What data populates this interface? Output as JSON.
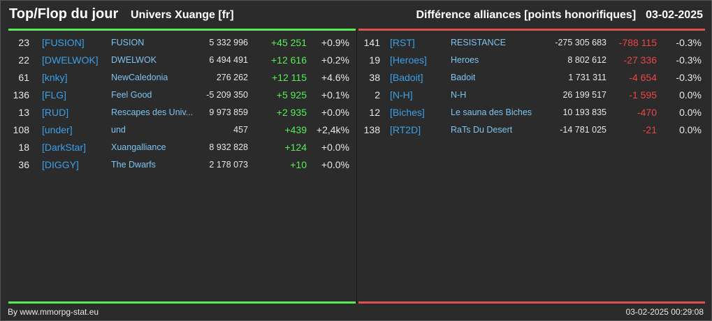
{
  "header": {
    "title": "Top/Flop du jour",
    "universe": "Univers Xuange [fr]",
    "metric": "Différence alliances [points honorifiques]",
    "date": "03-02-2025"
  },
  "colors": {
    "top_bar": "#55ee55",
    "flop_bar": "#e05050",
    "tag": "#3aa0e8",
    "up": "#55ee55",
    "down": "#ee4444"
  },
  "top": [
    {
      "rank": "23",
      "tag": "[FUSION]",
      "name": "FUSION",
      "points": "5 332 996",
      "diff": "+45 251",
      "pct": "+0.9%"
    },
    {
      "rank": "22",
      "tag": "[DWELWOK]",
      "name": "DWELWOK",
      "points": "6 494 491",
      "diff": "+12 616",
      "pct": "+0.2%"
    },
    {
      "rank": "61",
      "tag": "[knky]",
      "name": "NewCaledonia",
      "points": "276 262",
      "diff": "+12 115",
      "pct": "+4.6%"
    },
    {
      "rank": "136",
      "tag": "[FLG]",
      "name": "Feel Good",
      "points": "-5 209 350",
      "diff": "+5 925",
      "pct": "+0.1%"
    },
    {
      "rank": "13",
      "tag": "[RUD]",
      "name": "Rescapes des Univ...",
      "points": "9 973 859",
      "diff": "+2 935",
      "pct": "+0.0%"
    },
    {
      "rank": "108",
      "tag": "[under]",
      "name": "und",
      "points": "457",
      "diff": "+439",
      "pct": "+2,4k%"
    },
    {
      "rank": "18",
      "tag": "[DarkStar]",
      "name": "Xuangalliance",
      "points": "8 932 828",
      "diff": "+124",
      "pct": "+0.0%"
    },
    {
      "rank": "36",
      "tag": "[DIGGY]",
      "name": "The Dwarfs",
      "points": "2 178 073",
      "diff": "+10",
      "pct": "+0.0%"
    }
  ],
  "flop": [
    {
      "rank": "141",
      "tag": "[RST]",
      "name": "RESISTANCE",
      "points": "-275 305 683",
      "diff": "-788 115",
      "pct": "-0.3%"
    },
    {
      "rank": "19",
      "tag": "[Heroes]",
      "name": "Heroes",
      "points": "8 802 612",
      "diff": "-27 336",
      "pct": "-0.3%"
    },
    {
      "rank": "38",
      "tag": "[Badoit]",
      "name": "Badoit",
      "points": "1 731 311",
      "diff": "-4 654",
      "pct": "-0.3%"
    },
    {
      "rank": "2",
      "tag": "[N-H]",
      "name": "N-H",
      "points": "26 199 517",
      "diff": "-1 595",
      "pct": "0.0%"
    },
    {
      "rank": "12",
      "tag": "[Biches]",
      "name": "Le sauna des Biches",
      "points": "10 193 835",
      "diff": "-470",
      "pct": "0.0%"
    },
    {
      "rank": "138",
      "tag": "[RT2D]",
      "name": "RaTs Du Desert",
      "points": "-14 781 025",
      "diff": "-21",
      "pct": "0.0%"
    }
  ],
  "footer": {
    "source": "By www.mmorpg-stat.eu",
    "timestamp": "03-02-2025 00:29:08"
  }
}
